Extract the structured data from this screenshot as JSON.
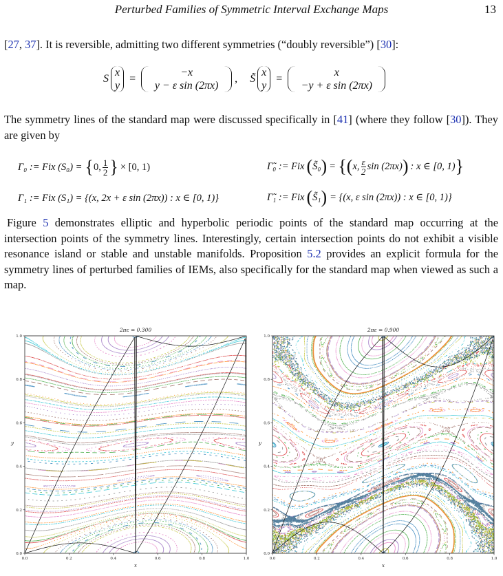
{
  "header": {
    "title": "Perturbed Families of Symmetric Interval Exchange Maps",
    "page_number": "13"
  },
  "para1": {
    "open": "[",
    "ref1": "27",
    "sep": ", ",
    "ref2": "37",
    "text": "]. It is reversible, admitting two different symmetries (“doubly reversible”) [",
    "ref3": "30",
    "close": "]:"
  },
  "eq1": {
    "lhs_S": "S",
    "vec_x": "x",
    "vec_y": "y",
    "eq": "=",
    "rhs_top": "−x",
    "rhs_bot": "y − ε sin (2πx)",
    "comma": ",",
    "lhs_S2": "S̃",
    "rhs2_top": "x",
    "rhs2_bot": "−y + ε sin (2πx)"
  },
  "para2": {
    "t1": "The symmetry lines of the standard map were discussed specifically in [",
    "ref1": "41",
    "t2": "] (where they follow [",
    "ref2": "30",
    "t3": "]). They are given by"
  },
  "sym": {
    "g0_lhs": "Γ₀ := Fix (S₀) =",
    "g0_rhs_a": "0,",
    "g0_num": "1",
    "g0_den": "2",
    "g0_rhs_b": "× [0, 1)",
    "tg0_lhs": "Γ̃₀ := Fix",
    "tg0_arg": "S̃₀",
    "tg0_eq": "=",
    "tg0_a": "x,",
    "tg0_num": "ε",
    "tg0_den": "2",
    "tg0_b": "sin (2πx)",
    "tg0_c": ": x ∈ [0, 1)",
    "g1": "Γ₁ := Fix (S₁) = {(x, 2x + ε sin (2πx)) : x ∈ [0, 1)}",
    "tg1_lhs": "Γ̃₁ := Fix",
    "tg1_arg": "S̃₁",
    "tg1_rhs": "= {(x, ε sin (2πx)) : x ∈ [0, 1)}"
  },
  "para3": {
    "t1": "Figure ",
    "ref1": "5",
    "t2": " demonstrates elliptic and hyperbolic periodic points of the standard map occurring at the intersection points of the symmetry lines. Interestingly, certain intersection points do not exhibit a visible resonance island or stable and unstable manifolds. Proposition ",
    "ref2": "5.2",
    "t3": " provides an explicit formula for the symmetry lines of perturbed families of IEMs, also specifically for the standard map when viewed as such a map."
  },
  "figure": {
    "panels": [
      {
        "title": "2πε = 0.300",
        "eps2pi": 0.3
      },
      {
        "title": "2πε = 0.900",
        "eps2pi": 0.9
      }
    ],
    "xlabel": "x",
    "ylabel": "y",
    "xticks": [
      "0.0",
      "0.2",
      "0.4",
      "0.6",
      "0.8",
      "1.0"
    ],
    "yticks": [
      "0.0",
      "0.2",
      "0.4",
      "0.6",
      "0.8",
      "1.0"
    ],
    "xlim": [
      0,
      1
    ],
    "ylim": [
      0,
      1
    ],
    "chaos_color": "#3b6e8f",
    "chaos_color2": "#f08020",
    "chaos_color3": "#a8b820"
  }
}
